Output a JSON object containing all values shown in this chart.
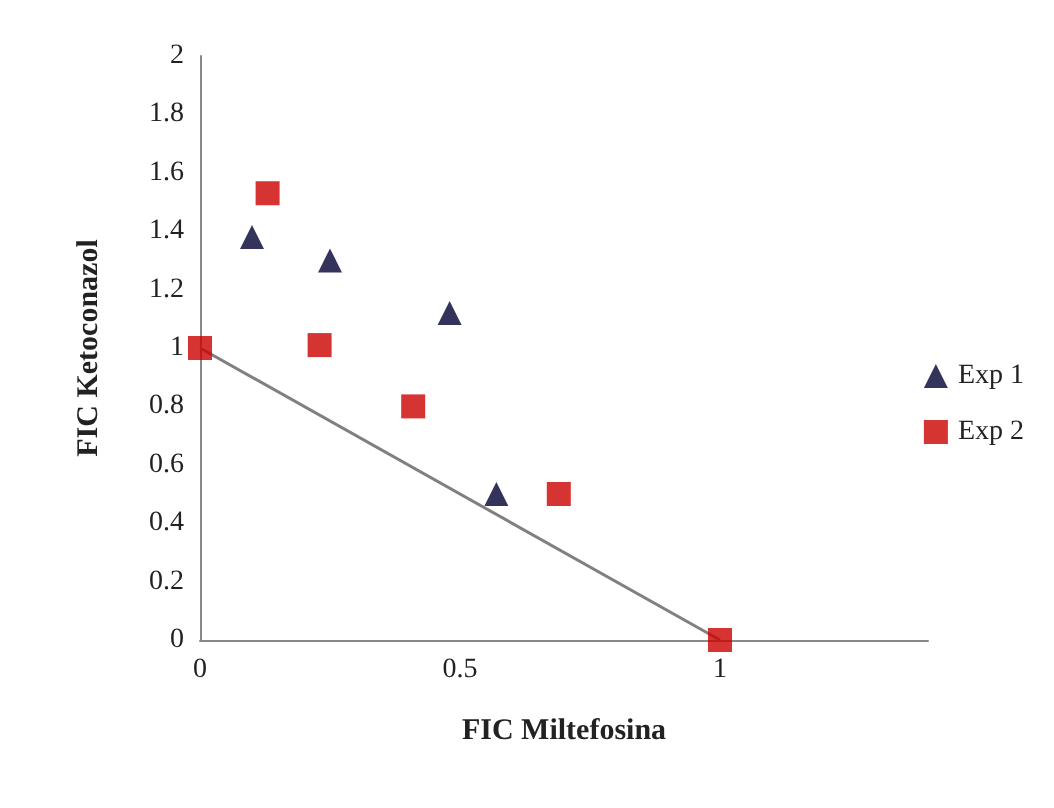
{
  "chart_data": {
    "type": "scatter",
    "xlabel": "FIC Miltefosina",
    "ylabel": "FIC Ketoconazol",
    "series": [
      {
        "name": "Exp 1",
        "color": "#000033",
        "marker": "triangle",
        "x": [
          0.1,
          0.25,
          0.48,
          0.57
        ],
        "values": [
          1.38,
          1.3,
          1.12,
          0.5
        ]
      },
      {
        "name": "Exp 2",
        "color": "#cc0000",
        "marker": "square",
        "x": [
          0,
          0.13,
          0.23,
          0.41,
          0.69,
          1
        ],
        "values": [
          1,
          1.53,
          1.01,
          0.8,
          0.5,
          0
        ]
      },
      {
        "type": "line",
        "color": "#808080",
        "marker": "none",
        "x": [
          0,
          1
        ],
        "values": [
          1,
          0
        ]
      }
    ],
    "xlim": [
      0,
      1.4
    ],
    "xticks": [
      0,
      0.5,
      1
    ],
    "ylim": [
      0,
      2
    ],
    "yticks": [
      0,
      0.2,
      0.4,
      0.6,
      0.8,
      1,
      1.2,
      1.4,
      1.6,
      1.8,
      2
    ],
    "grid": false,
    "legend": "right"
  }
}
